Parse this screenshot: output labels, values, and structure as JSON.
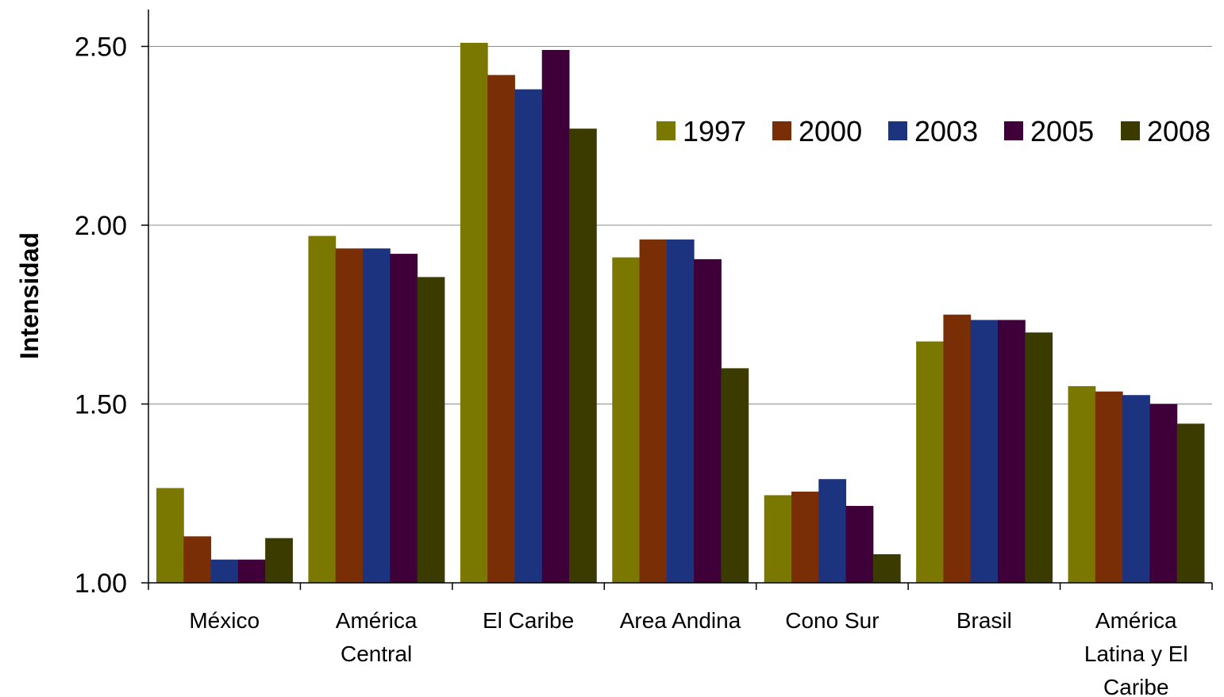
{
  "chart_data": {
    "type": "bar",
    "title": "",
    "xlabel": "",
    "ylabel": "Intensidad",
    "ylim": [
      1.0,
      2.6
    ],
    "yticks": [
      "1.00",
      "1.50",
      "2.00",
      "2.50"
    ],
    "ytick_values": [
      1.0,
      1.5,
      2.0,
      2.5
    ],
    "grid": true,
    "legend_position": "top-right",
    "categories": [
      [
        "México"
      ],
      [
        "América",
        "Central"
      ],
      [
        "El Caribe"
      ],
      [
        "Area Andina"
      ],
      [
        "Cono Sur"
      ],
      [
        "Brasil"
      ],
      [
        "América",
        "Latina y El",
        "Caribe"
      ]
    ],
    "series": [
      {
        "name": "1997",
        "color": "#7a7800",
        "values": [
          1.265,
          1.97,
          2.51,
          1.91,
          1.245,
          1.675,
          1.55
        ]
      },
      {
        "name": "2000",
        "color": "#7a2e06",
        "values": [
          1.13,
          1.935,
          2.42,
          1.96,
          1.255,
          1.75,
          1.535
        ]
      },
      {
        "name": "2003",
        "color": "#1c3380",
        "values": [
          1.065,
          1.935,
          2.38,
          1.96,
          1.29,
          1.735,
          1.525
        ]
      },
      {
        "name": "2005",
        "color": "#3f0039",
        "values": [
          1.065,
          1.92,
          2.49,
          1.905,
          1.215,
          1.735,
          1.5
        ]
      },
      {
        "name": "2008",
        "color": "#3b3b00",
        "values": [
          1.125,
          1.855,
          2.27,
          1.6,
          1.08,
          1.7,
          1.445
        ]
      }
    ]
  }
}
